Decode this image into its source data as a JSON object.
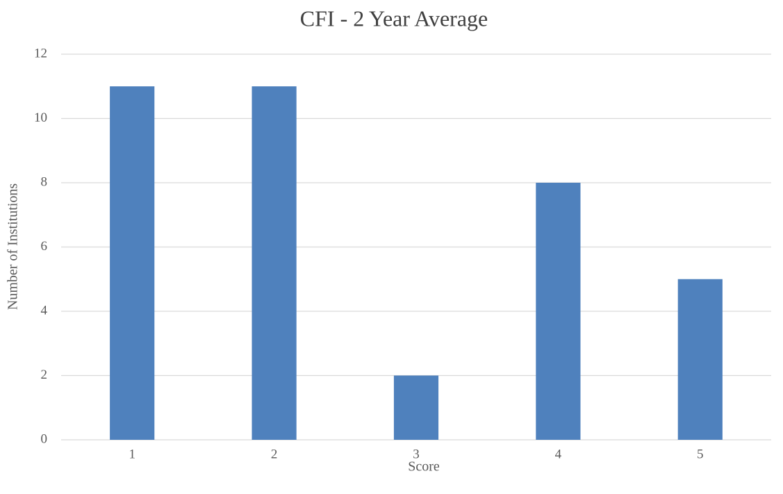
{
  "chart_data": {
    "type": "bar",
    "title": "CFI - 2 Year Average",
    "x_label": "Score",
    "y_label": "Number of Institutions",
    "categories": [
      "1",
      "2",
      "3",
      "4",
      "5"
    ],
    "values": [
      11,
      11,
      2,
      8,
      5
    ],
    "color": "#4f81bd",
    "ylim": [
      0,
      12
    ],
    "yticks": [
      0,
      2,
      4,
      6,
      8,
      10,
      12
    ],
    "grid": true
  }
}
